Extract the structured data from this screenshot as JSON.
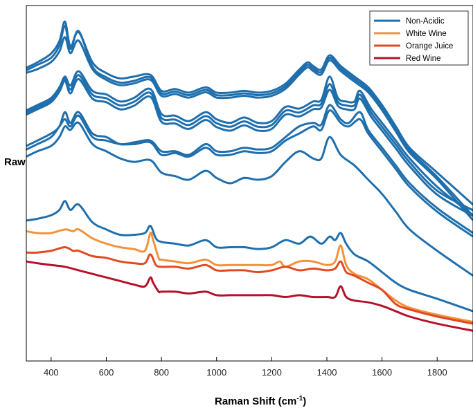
{
  "chart_data": {
    "type": "line",
    "xlabel": "Raman Shift (cm",
    "xlabel_sup": "-1",
    "xlabel_close": ")",
    "ylabel": "Raw",
    "xlim": [
      310,
      1930
    ],
    "ylim": [
      0,
      100
    ],
    "xticks": [
      400,
      600,
      800,
      1000,
      1200,
      1400,
      1600,
      1800
    ],
    "grid": false,
    "legend_position": "top-right",
    "legend": [
      {
        "label": "Non-Acidic",
        "color": "#1f6fad"
      },
      {
        "label": "White Wine",
        "color": "#f4913a"
      },
      {
        "label": "Orange Juice",
        "color": "#e04a22"
      },
      {
        "label": "Red Wine",
        "color": "#b5112a"
      }
    ],
    "series": [
      {
        "group": "Non-Acidic",
        "color": "#1f6fad",
        "base": 82.5,
        "shift": 0.0,
        "x": [
          310,
          350,
          400,
          430,
          450,
          470,
          500,
          550,
          600,
          650,
          700,
          760,
          800,
          850,
          900,
          960,
          1000,
          1050,
          1100,
          1150,
          1200,
          1250,
          1300,
          1330,
          1350,
          1380,
          1410,
          1450,
          1500,
          1550,
          1600,
          1650,
          1700,
          1800,
          1930
        ],
        "y": [
          82.5,
          84,
          86.5,
          90,
          95.5,
          88.5,
          92.5,
          84,
          81,
          79.5,
          80,
          80.5,
          76,
          76.5,
          75.5,
          77,
          75.5,
          75.5,
          76,
          75.5,
          76,
          78,
          82,
          84,
          83,
          82,
          86,
          83,
          80,
          77,
          72,
          66,
          60,
          53,
          44
        ]
      },
      {
        "group": "Non-Acidic",
        "color": "#1f6fad",
        "base": 82.0,
        "shift": 0.2,
        "x": [
          310,
          350,
          400,
          430,
          450,
          470,
          500,
          550,
          600,
          650,
          700,
          760,
          800,
          850,
          900,
          960,
          1000,
          1050,
          1100,
          1150,
          1200,
          1250,
          1300,
          1330,
          1350,
          1380,
          1410,
          1450,
          1500,
          1550,
          1600,
          1650,
          1700,
          1800,
          1930
        ],
        "y": [
          82,
          83.5,
          85.5,
          89,
          94.5,
          88,
          93,
          83,
          80,
          78.5,
          79,
          80,
          75.5,
          76,
          75,
          76.5,
          75,
          75,
          75.5,
          75,
          75.5,
          77.5,
          81.5,
          83.5,
          82.5,
          81.5,
          85.5,
          82.5,
          79.5,
          76.5,
          71.5,
          65.5,
          59.5,
          52,
          41
        ]
      },
      {
        "group": "Non-Acidic",
        "color": "#1f6fad",
        "base": 81.5,
        "shift": 0.4,
        "x": [
          310,
          350,
          400,
          430,
          450,
          470,
          500,
          550,
          600,
          650,
          700,
          760,
          800,
          850,
          900,
          960,
          1000,
          1050,
          1100,
          1150,
          1200,
          1250,
          1300,
          1330,
          1350,
          1380,
          1410,
          1450,
          1500,
          1550,
          1600,
          1650,
          1700,
          1800,
          1930
        ],
        "y": [
          81.5,
          82.5,
          84.5,
          87.5,
          91.5,
          87,
          90.5,
          82.5,
          79.5,
          78,
          78.5,
          79.5,
          75,
          75.5,
          74.5,
          76,
          74.5,
          74.5,
          75,
          74.5,
          75,
          77,
          81,
          83,
          82,
          81,
          85,
          82,
          79,
          76,
          71,
          65,
          59,
          51.5,
          40
        ]
      },
      {
        "group": "Non-Acidic",
        "color": "#1f6fad",
        "base": 70.5,
        "shift": 0.0,
        "x": [
          310,
          350,
          400,
          430,
          450,
          470,
          500,
          550,
          600,
          650,
          700,
          760,
          800,
          850,
          900,
          960,
          1000,
          1050,
          1100,
          1150,
          1200,
          1250,
          1300,
          1350,
          1380,
          1410,
          1440,
          1470,
          1500,
          1520,
          1560,
          1600,
          1650,
          1700,
          1800,
          1930
        ],
        "y": [
          70.5,
          72,
          74,
          77,
          80,
          77.5,
          81.5,
          76,
          75,
          73,
          74,
          76.5,
          69.5,
          69,
          67.5,
          70,
          68,
          67,
          68.5,
          67,
          67.5,
          71.5,
          71,
          73,
          73.5,
          80,
          74,
          73,
          73,
          76,
          71,
          67,
          62,
          57,
          49,
          41
        ]
      },
      {
        "group": "Non-Acidic",
        "color": "#1f6fad",
        "base": 70.5,
        "shift": 0.6,
        "x": [
          310,
          350,
          400,
          430,
          450,
          470,
          500,
          550,
          600,
          650,
          700,
          760,
          800,
          850,
          900,
          960,
          1000,
          1050,
          1100,
          1150,
          1200,
          1250,
          1300,
          1350,
          1380,
          1410,
          1440,
          1470,
          1500,
          1520,
          1560,
          1600,
          1650,
          1700,
          1800,
          1930
        ],
        "y": [
          70.5,
          72,
          74,
          77,
          80,
          77,
          81,
          75.5,
          74.5,
          72.5,
          73.5,
          76,
          69,
          68.5,
          67,
          69.5,
          67.5,
          66.5,
          68,
          66.5,
          67,
          71,
          70.5,
          72.5,
          73,
          78.5,
          73.5,
          72.5,
          72.5,
          75.5,
          70.5,
          66.5,
          61.5,
          56.5,
          48.5,
          43
        ]
      },
      {
        "group": "Non-Acidic",
        "color": "#1f6fad",
        "base": 70.5,
        "shift": 1.2,
        "x": [
          310,
          350,
          400,
          430,
          450,
          470,
          500,
          550,
          600,
          650,
          700,
          760,
          800,
          850,
          900,
          960,
          1000,
          1050,
          1100,
          1150,
          1200,
          1250,
          1300,
          1350,
          1380,
          1410,
          1440,
          1470,
          1500,
          1520,
          1560,
          1600,
          1650,
          1700,
          1800,
          1930
        ],
        "y": [
          70.5,
          72,
          74,
          77,
          80,
          76.5,
          80.5,
          75,
          74,
          72,
          73,
          75.5,
          68.5,
          68,
          66.5,
          69,
          67,
          66,
          67.5,
          66,
          66.5,
          70.5,
          70,
          72,
          72.5,
          77.5,
          73,
          72,
          72,
          75,
          70,
          66,
          61,
          56,
          48,
          42
        ]
      },
      {
        "group": "Non-Acidic",
        "color": "#1f6fad",
        "base": 60.5,
        "shift": 0.0,
        "x": [
          310,
          350,
          400,
          430,
          450,
          470,
          500,
          550,
          600,
          650,
          700,
          760,
          800,
          850,
          900,
          960,
          1000,
          1050,
          1100,
          1150,
          1200,
          1250,
          1300,
          1350,
          1380,
          1410,
          1450,
          1480,
          1520,
          1550,
          1600,
          1650,
          1700,
          1800,
          1930
        ],
        "y": [
          60.5,
          62,
          64,
          66,
          70,
          67,
          70,
          64,
          63,
          61,
          61.5,
          62,
          59,
          59,
          58,
          61,
          59,
          59,
          60,
          59.5,
          60,
          63,
          66,
          67,
          66.5,
          72,
          68,
          67,
          70,
          65,
          60,
          55,
          50,
          43,
          36
        ]
      },
      {
        "group": "Non-Acidic",
        "color": "#1f6fad",
        "base": 59.5,
        "shift": 0.0,
        "x": [
          310,
          350,
          400,
          430,
          450,
          470,
          500,
          550,
          600,
          650,
          700,
          760,
          800,
          850,
          900,
          960,
          1000,
          1050,
          1100,
          1150,
          1200,
          1250,
          1300,
          1350,
          1380,
          1410,
          1450,
          1480,
          1520,
          1550,
          1600,
          1650,
          1700,
          1800,
          1930
        ],
        "y": [
          59.5,
          61,
          63,
          66,
          68,
          66,
          69,
          63,
          62,
          61,
          61,
          61.5,
          58,
          58.5,
          57.5,
          60,
          58,
          58,
          59,
          58.5,
          59,
          62,
          64,
          66,
          65,
          70.5,
          67,
          66,
          68,
          64,
          59,
          54,
          49,
          42,
          35
        ]
      },
      {
        "group": "Non-Acidic",
        "color": "#1f6fad",
        "base": 57.5,
        "shift": 0.0,
        "x": [
          310,
          350,
          400,
          430,
          450,
          470,
          500,
          550,
          600,
          650,
          700,
          760,
          800,
          850,
          900,
          960,
          1000,
          1050,
          1100,
          1150,
          1200,
          1250,
          1300,
          1350,
          1380,
          1410,
          1450,
          1500,
          1550,
          1600,
          1650,
          1700,
          1800,
          1930
        ],
        "y": [
          57.5,
          59,
          60.5,
          63,
          66,
          65,
          67,
          61,
          59,
          57,
          56,
          56.5,
          53,
          52,
          51,
          53.5,
          51.5,
          50,
          51.5,
          51,
          52,
          56,
          59,
          57,
          57,
          63,
          58,
          55,
          51,
          47,
          42,
          37,
          31,
          24
        ]
      },
      {
        "group": "Non-Acidic",
        "color": "#1f6fad",
        "base": 39.5,
        "shift": 0.0,
        "x": [
          310,
          350,
          400,
          430,
          450,
          470,
          500,
          550,
          600,
          650,
          700,
          740,
          760,
          780,
          800,
          850,
          900,
          960,
          1000,
          1050,
          1100,
          1150,
          1200,
          1250,
          1300,
          1340,
          1380,
          1410,
          1430,
          1450,
          1470,
          1500,
          1550,
          1600,
          1650,
          1700,
          1800,
          1930
        ],
        "y": [
          39.5,
          40,
          41,
          42.5,
          45,
          42.5,
          44,
          39,
          37,
          35.5,
          35.5,
          36,
          38,
          34.5,
          33.5,
          33,
          32.5,
          34,
          32,
          32,
          32,
          31.5,
          32,
          34,
          33,
          35,
          33,
          35,
          34,
          36,
          33,
          30,
          28,
          25,
          22,
          20,
          17.5,
          14
        ]
      },
      {
        "group": "White Wine",
        "color": "#f4913a",
        "base": 36.5,
        "shift": 0.0,
        "x": [
          310,
          350,
          400,
          450,
          480,
          500,
          550,
          600,
          650,
          700,
          740,
          760,
          770,
          790,
          800,
          850,
          900,
          960,
          1000,
          1050,
          1100,
          1150,
          1200,
          1230,
          1250,
          1300,
          1350,
          1400,
          1430,
          1450,
          1470,
          1500,
          1550,
          1600,
          1650,
          1700,
          1800,
          1930
        ],
        "y": [
          36.5,
          36,
          36,
          37,
          36.5,
          37,
          34.5,
          33,
          32,
          31.5,
          31,
          36,
          34,
          29,
          28.5,
          28,
          27.5,
          28.5,
          27,
          27,
          27,
          27,
          27,
          28,
          26.5,
          28,
          28,
          27,
          28,
          32.5,
          27,
          24.5,
          23,
          20,
          17,
          15,
          13,
          11
        ]
      },
      {
        "group": "Orange Juice",
        "color": "#e04a22",
        "base": 30.5,
        "shift": 0.0,
        "x": [
          310,
          350,
          400,
          450,
          480,
          500,
          550,
          600,
          650,
          700,
          740,
          760,
          780,
          800,
          850,
          900,
          960,
          1000,
          1050,
          1100,
          1150,
          1200,
          1250,
          1300,
          1350,
          1400,
          1430,
          1450,
          1470,
          1500,
          1550,
          1600,
          1650,
          1700,
          1800,
          1930
        ],
        "y": [
          30.5,
          30.5,
          31,
          32,
          31,
          31,
          29.5,
          29,
          28,
          27.5,
          27.5,
          30,
          27,
          26.5,
          26.5,
          26,
          27,
          25.5,
          25.5,
          25.5,
          25,
          25.5,
          26.5,
          25.5,
          26,
          25.5,
          26,
          28,
          25,
          24,
          22,
          20,
          16,
          14.5,
          12.5,
          10.5
        ]
      },
      {
        "group": "Red Wine",
        "color": "#b5112a",
        "base": 28.0,
        "shift": 0.0,
        "x": [
          310,
          350,
          400,
          450,
          500,
          550,
          600,
          650,
          700,
          740,
          760,
          770,
          790,
          800,
          850,
          900,
          960,
          1000,
          1050,
          1100,
          1150,
          1200,
          1250,
          1300,
          1350,
          1400,
          1430,
          1450,
          1470,
          1500,
          1550,
          1600,
          1650,
          1700,
          1800,
          1930
        ],
        "y": [
          28,
          27.5,
          27,
          26.5,
          25.5,
          24.5,
          23.5,
          22.5,
          21.5,
          21,
          23.5,
          22,
          19.5,
          19.5,
          19.5,
          19,
          19.5,
          18.5,
          18.5,
          18.5,
          18.5,
          18.5,
          18,
          18.5,
          18,
          18,
          18,
          21,
          18,
          17,
          16.5,
          15.5,
          14,
          12.5,
          10.5,
          8.5
        ]
      }
    ]
  }
}
